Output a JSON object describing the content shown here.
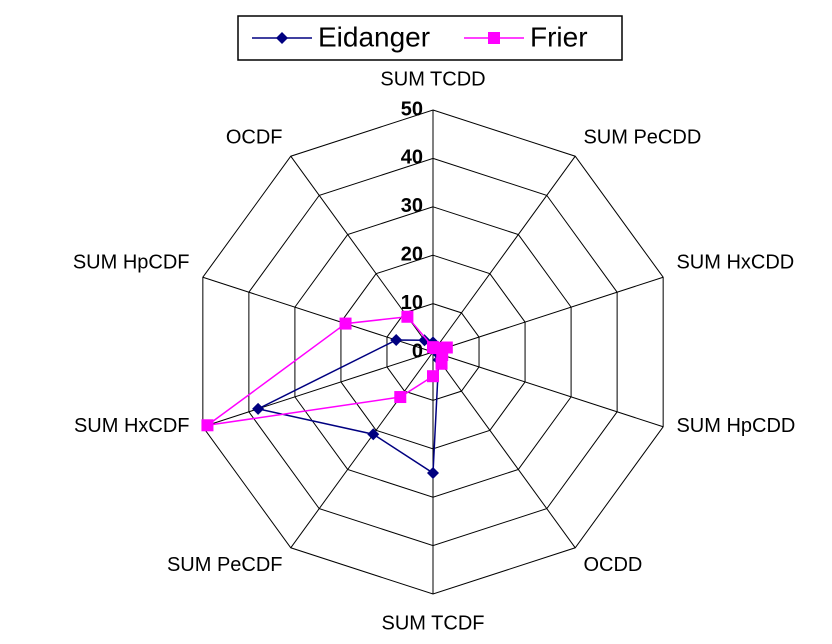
{
  "chart_data": {
    "type": "radar",
    "categories": [
      "SUM TCDD",
      "SUM PeCDD",
      "SUM HxCDD",
      "SUM HpCDD",
      "OCDD",
      "SUM TCDF",
      "SUM PeCDF",
      "SUM HxCDF",
      "SUM HpCDF",
      "OCDF"
    ],
    "series": [
      {
        "name": "Eidanger",
        "color": "#000080",
        "marker": "diamond",
        "values": [
          2,
          1,
          1,
          1,
          2,
          25,
          21,
          38,
          8,
          3
        ]
      },
      {
        "name": "Frier",
        "color": "#ff00ff",
        "marker": "square",
        "values": [
          1,
          1,
          3,
          2,
          3,
          5,
          11.5,
          49,
          19,
          9
        ]
      }
    ],
    "ylim": [
      0,
      50
    ],
    "yticks": [
      0,
      10,
      20,
      30,
      40,
      50
    ],
    "grid": true,
    "legend": "top"
  }
}
